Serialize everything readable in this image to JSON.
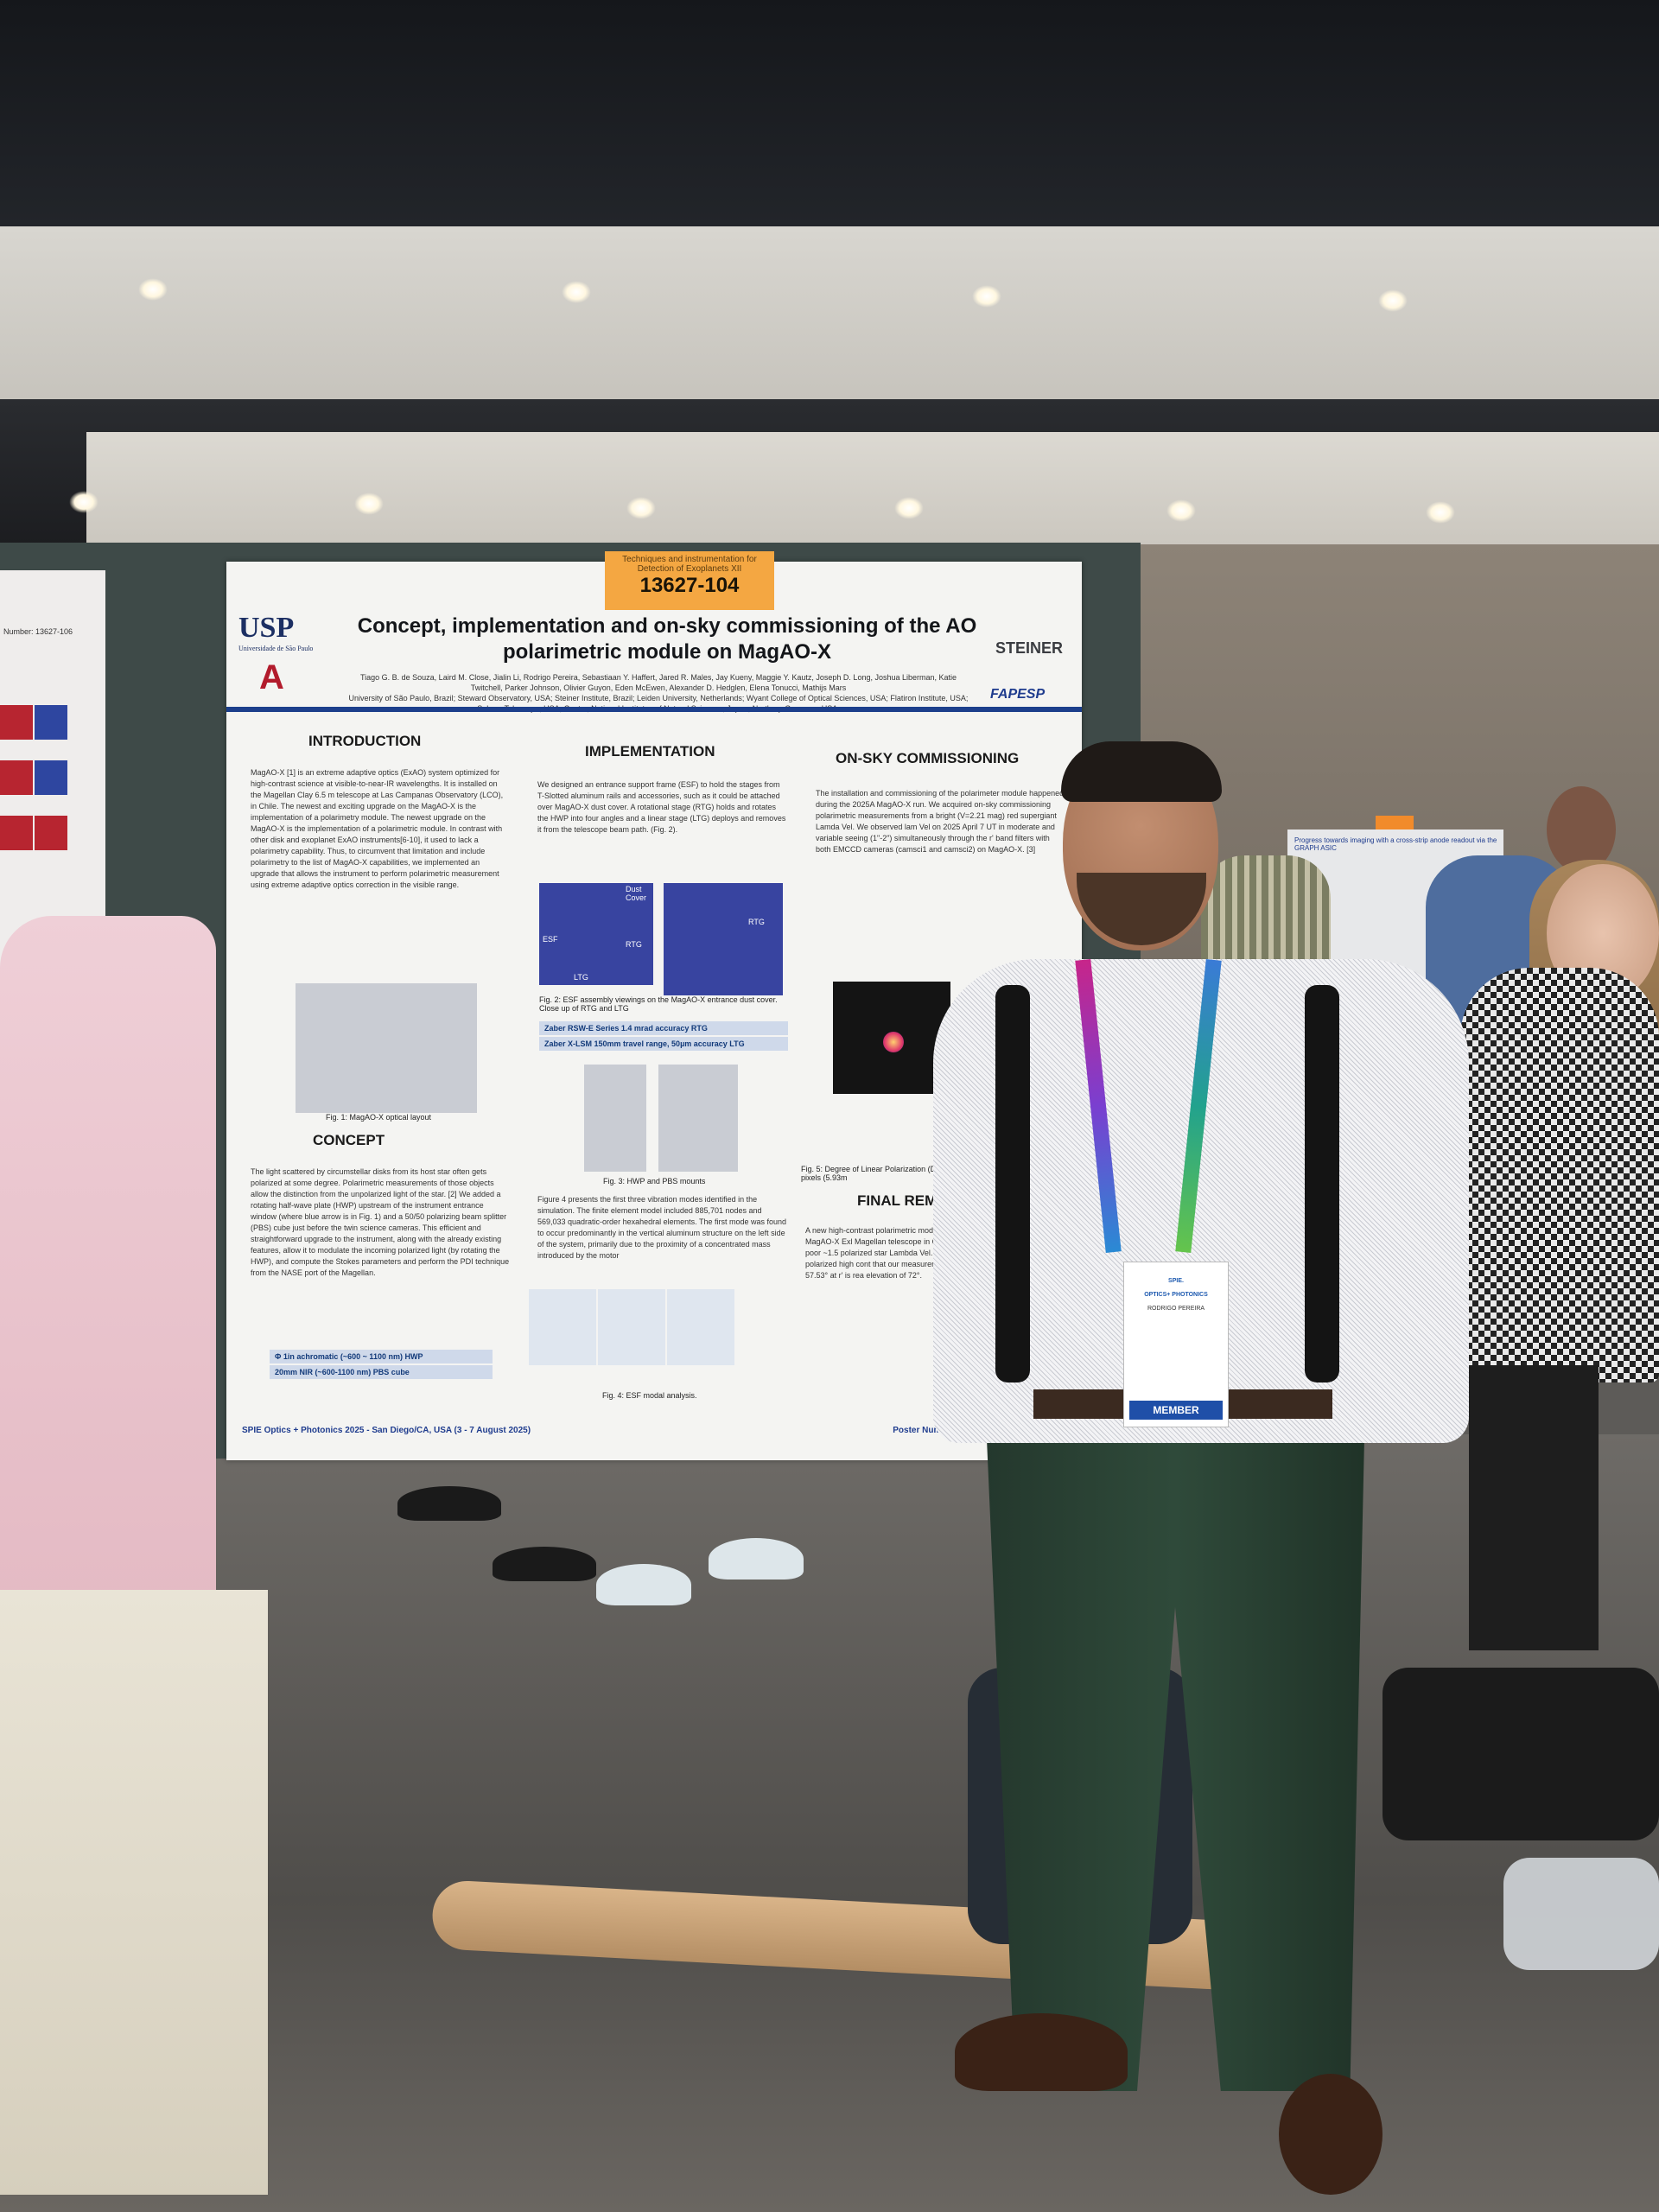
{
  "poster": {
    "tag_small": "Techniques and instrumentation for Detection of Exoplanets XII",
    "tag_number": "13627-104",
    "title": "Concept, implementation and on-sky commissioning of the AO polarimetric module on MagAO-X",
    "authors": "Tiago G. B. de Souza, Laird M. Close, Jialin Li, Rodrigo Pereira, Sebastiaan Y. Haffert, Jared R. Males, Jay Kueny, Maggie Y. Kautz, Joseph D. Long, Joshua Liberman, Katie Twitchell, Parker Johnson, Olivier Guyon, Eden McEwen, Alexander D. Hedglen, Elena Tonucci, Mathijs Mars",
    "affiliations": "University of São Paulo, Brazil; Steward Observatory, USA; Steiner Institute, Brazil; Leiden University, Netherlands; Wyant College of Optical Sciences, USA; Flatiron Institute, USA; Subaru Telescope, USA; Center, National Institutes of Natural Sciences, Japan; Northrop Grumman USA.",
    "logos": {
      "usp": "USP",
      "usp_sub": "Universidade de São Paulo",
      "arizona": "A",
      "steiner": "STEINER",
      "fapesp": "FAPESP"
    },
    "sections": {
      "introduction": "INTRODUCTION",
      "implementation": "IMPLEMENTATION",
      "commissioning": "ON-SKY COMMISSIONING",
      "concept": "CONCEPT",
      "final": "FINAL REM"
    },
    "intro_text": "MagAO-X [1] is an extreme adaptive optics (ExAO) system optimized for high-contrast science at visible-to-near-IR wavelengths. It is installed on the Magellan Clay 6.5 m telescope at Las Campanas Observatory (LCO), in Chile. The newest and exciting upgrade on the MagAO-X is the implementation of a polarimetry module. The newest upgrade on the MagAO-X is the implementation of a polarimetric module. In contrast with other disk and exoplanet ExAO instruments[6-10], it used to lack a polarimetry capability. Thus, to circumvent that limitation and include polarimetry to the list of MagAO-X capabilities, we implemented an upgrade that allows the instrument to perform polarimetric measurement using extreme adaptive optics correction in the visible range.",
    "impl_text": "We designed an entrance support frame (ESF) to hold the stages from T-Slotted aluminum rails and accessories, such as it could be attached over MagAO-X dust cover. A rotational stage (RTG) holds and rotates the HWP into four angles and a linear stage (LTG) deploys and removes it from the telescope beam path. (Fig. 2).",
    "comm_text": "The installation and commissioning of the polarimeter module happened during the 2025A MagAO-X run. We acquired on-sky commissioning polarimetric measurements from a bright (V=2.21 mag) red supergiant Lamda Vel. We observed lam Vel on 2025 April 7 UT in moderate and variable seeing (1\"-2\") simultaneously through the r' band filters with both EMCCD cameras (camsci1 and camsci2) on MagAO-X. [3]",
    "concept_text": "The light scattered by circumstellar disks from its host star often gets polarized at some degree. Polarimetric measurements of those objects allow the distinction from the unpolarized light of the star. [2] We added a rotating half-wave plate (HWP) upstream of the instrument entrance window (where blue arrow is in Fig. 1) and a 50/50 polarizing beam splitter (PBS) cube just before the twin science cameras. This efficient and straightforward upgrade to the instrument, along with the already existing features, allow it to modulate the incoming polarized light (by rotating the HWP), and compute the Stokes parameters and perform the PDI technique from the NASE port of the Magellan.",
    "vib_text": "Figure 4 presents the first three vibration modes identified in the simulation. The finite element model included 885,701 nodes and 569,033 quadratic-order hexahedral elements. The first mode was found to occur predominantly in the vertical aluminum structure on the left side of the system, primarily due to the proximity of a concentrated mass introduced by the motor",
    "final_text": "A new high-contrast polarimetric module deployed on the MagAO-X Exl Magellan telescope in Chile. polarimetric images in poor ~1.5 polarized star Lambda Vel. The by our custom polarized high cont that our measurement of the Pl=0.99% at 57.53° at r' is rea elevation of 72°.",
    "captions": {
      "fig1": "Fig. 1: MagAO-X optical layout",
      "fig2": "Fig. 2: ESF assembly viewings on the MagAO-X entrance dust cover. Close up of RTG and LTG",
      "fig3": "Fig. 3: HWP and PBS mounts",
      "fig4": "Fig. 4: ESF modal analysis.",
      "fig5": "Fig. 5: Degree of Linear Polarization (DoLP) FWHM map of the inner 32 pixels (5.93m"
    },
    "fig2_labels": {
      "dust": "Dust Cover",
      "esf": "ESF",
      "rtg": "RTG",
      "ltg": "LTG",
      "rtg2": "RTG"
    },
    "highlights": {
      "rtg": "Zaber RSW-E Series 1.4 mrad accuracy RTG",
      "ltg": "Zaber X-LSM 150mm travel range, 50µm accuracy LTG",
      "hwp": "Φ 1in achromatic (~600 ~ 1100 nm) HWP",
      "pbs": "20mm NIR (~600-1100 nm) PBS cube"
    },
    "footer_left": "SPIE Optics + Photonics 2025 - San Diego/CA, USA (3 - 7 August 2025)",
    "footer_right": "Poster Number: 13627-104 · tiago.gualberto"
  },
  "badge": {
    "brand": "SPIE.",
    "brand_sub": "OPTICS+ PHOTONICS",
    "name": "RODRIGO PEREIRA",
    "member": "MEMBER"
  },
  "left_poster": {
    "number": "Number: 13627-106"
  },
  "bg_poster": {
    "title": "Progress towards imaging with a cross-strip anode readout via the GRAPH ASIC"
  }
}
